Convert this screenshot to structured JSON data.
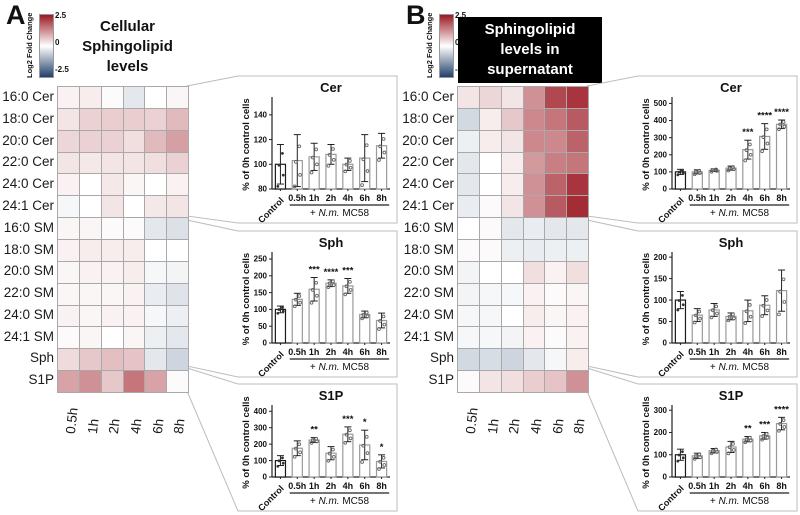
{
  "chart_data": {
    "shared": {
      "colorbar": {
        "label": "Log2 Fold Change",
        "tick_top": "2.5",
        "tick_mid": "0",
        "tick_bottom": "-2.5",
        "domain": [
          -2.5,
          2.5
        ],
        "color_max": "#9c1a23",
        "color_mid": "#ffffff",
        "color_min": "#22406b"
      },
      "heatmap_columns": [
        "0.5h",
        "1h",
        "2h",
        "4h",
        "6h",
        "8h"
      ],
      "heatmap_rows": [
        "16:0 Cer",
        "18:0 Cer",
        "20:0 Cer",
        "22:0 Cer",
        "24:0 Cer",
        "24:1 Cer",
        "16:0 SM",
        "18:0 SM",
        "20:0 SM",
        "22:0 SM",
        "24:0 SM",
        "24:1 SM",
        "Sph",
        "S1P"
      ],
      "bar_categories": [
        "Control",
        "0.5h",
        "1h",
        "2h",
        "4h",
        "6h",
        "8h"
      ],
      "bar_ylabel": "% of 0h control cells",
      "treatment_label": {
        "prefix": "+ ",
        "italic": "N.m.",
        "suffix": " MC58"
      }
    },
    "panels": [
      {
        "letter": "A",
        "title_lines": [
          "Cellular",
          "Sphingolipid",
          "levels"
        ],
        "title_inverted": false,
        "heatmap": {
          "type": "heatmap",
          "values": [
            [
              0.15,
              0.2,
              -0.05,
              -0.3,
              0.0,
              0.1
            ],
            [
              0.3,
              0.5,
              0.55,
              0.55,
              0.5,
              0.75
            ],
            [
              0.45,
              0.5,
              0.5,
              0.35,
              0.75,
              1.05
            ],
            [
              0.3,
              0.25,
              0.3,
              0.3,
              0.35,
              0.5
            ],
            [
              0.15,
              0.0,
              0.25,
              0.1,
              0.0,
              0.15
            ],
            [
              -0.1,
              0.0,
              0.3,
              0.0,
              0.25,
              0.3
            ],
            [
              0.1,
              0.1,
              0.05,
              0.05,
              -0.3,
              -0.4
            ],
            [
              0.15,
              0.2,
              0.2,
              0.2,
              0.0,
              0.0
            ],
            [
              0.1,
              0.15,
              0.15,
              0.2,
              -0.1,
              -0.15
            ],
            [
              0.1,
              0.1,
              0.1,
              0.15,
              -0.25,
              -0.35
            ],
            [
              0.15,
              0.1,
              0.15,
              0.15,
              -0.1,
              -0.2
            ],
            [
              0.05,
              0.1,
              0.0,
              0.1,
              -0.2,
              -0.3
            ],
            [
              0.4,
              0.6,
              0.7,
              0.65,
              -0.3,
              -0.55
            ],
            [
              1.0,
              1.2,
              0.6,
              1.5,
              1.0,
              0.05
            ]
          ]
        },
        "bar_charts": [
          {
            "type": "bar",
            "title": "Cer",
            "ylim": [
              80,
              152
            ],
            "yticks": [
              80,
              100,
              120,
              140
            ],
            "values": [
              100,
              103,
              106,
              108,
              100,
              105,
              115
            ],
            "errors": [
              16,
              21,
              11,
              8,
              5,
              19,
              10
            ],
            "significance": [
              "",
              "",
              "",
              "",
              "",
              "",
              ""
            ]
          },
          {
            "type": "bar",
            "title": "Sph",
            "ylim": [
              0,
              262
            ],
            "yticks": [
              0,
              50,
              100,
              150,
              200,
              250
            ],
            "values": [
              100,
              130,
              160,
              178,
              170,
              85,
              67
            ],
            "errors": [
              10,
              18,
              35,
              10,
              22,
              10,
              22
            ],
            "significance": [
              "",
              "",
              "***",
              "****",
              "***",
              "",
              ""
            ]
          },
          {
            "type": "bar",
            "title": "S1P",
            "ylim": [
              0,
              420
            ],
            "yticks": [
              0,
              100,
              200,
              300,
              400
            ],
            "values": [
              100,
              175,
              225,
              145,
              260,
              195,
              95
            ],
            "errors": [
              30,
              45,
              15,
              40,
              45,
              90,
              40
            ],
            "significance": [
              "",
              "",
              "**",
              "",
              "***",
              "*",
              "*"
            ]
          }
        ]
      },
      {
        "letter": "B",
        "title_lines": [
          "Sphingolipid",
          "levels in",
          "supernatant"
        ],
        "title_inverted": true,
        "heatmap": {
          "type": "heatmap",
          "values": [
            [
              0.3,
              0.45,
              0.3,
              1.2,
              2.0,
              2.2
            ],
            [
              -0.5,
              0.2,
              0.6,
              1.3,
              1.5,
              1.8
            ],
            [
              -0.2,
              0.2,
              0.3,
              1.3,
              1.3,
              1.7
            ],
            [
              -0.3,
              0.0,
              0.2,
              1.1,
              1.4,
              1.5
            ],
            [
              -0.3,
              0.0,
              0.2,
              1.2,
              1.7,
              2.2
            ],
            [
              -0.25,
              0.05,
              0.3,
              1.2,
              1.8,
              2.3
            ],
            [
              0.0,
              0.05,
              -0.3,
              -0.25,
              -0.3,
              -0.3
            ],
            [
              0.05,
              0.05,
              -0.2,
              -0.25,
              -0.2,
              -0.2
            ],
            [
              -0.15,
              0.0,
              0.0,
              0.35,
              0.15,
              0.35
            ],
            [
              -0.15,
              -0.1,
              -0.1,
              0.15,
              0.05,
              0.1
            ],
            [
              -0.1,
              -0.1,
              0.0,
              0.2,
              0.1,
              0.15
            ],
            [
              -0.1,
              -0.1,
              -0.15,
              0.15,
              0.05,
              0.15
            ],
            [
              -0.5,
              -0.45,
              -0.55,
              -0.3,
              -0.1,
              0.2
            ],
            [
              0.05,
              0.3,
              0.35,
              0.55,
              0.65,
              1.2
            ]
          ]
        },
        "bar_charts": [
          {
            "type": "bar",
            "title": "Cer",
            "ylim": [
              0,
              520
            ],
            "yticks": [
              0,
              100,
              200,
              300,
              400,
              500
            ],
            "values": [
              100,
              100,
              110,
              122,
              230,
              307,
              378
            ],
            "errors": [
              15,
              12,
              8,
              12,
              55,
              75,
              25
            ],
            "significance": [
              "",
              "",
              "",
              "",
              "***",
              "****",
              "****"
            ]
          },
          {
            "type": "bar",
            "title": "Sph",
            "ylim": [
              0,
              205
            ],
            "yticks": [
              0,
              50,
              100,
              150,
              200
            ],
            "values": [
              100,
              65,
              77,
              62,
              75,
              88,
              122
            ],
            "errors": [
              20,
              15,
              15,
              8,
              25,
              22,
              48
            ],
            "significance": [
              "",
              "",
              "",
              "",
              "",
              "",
              ""
            ]
          },
          {
            "type": "bar",
            "title": "S1P",
            "ylim": [
              0,
              310
            ],
            "yticks": [
              0,
              100,
              200,
              300
            ],
            "values": [
              100,
              95,
              118,
              135,
              170,
              185,
              240
            ],
            "errors": [
              25,
              12,
              10,
              25,
              12,
              15,
              28
            ],
            "significance": [
              "",
              "",
              "",
              "",
              "**",
              "***",
              "****"
            ]
          }
        ]
      }
    ]
  }
}
